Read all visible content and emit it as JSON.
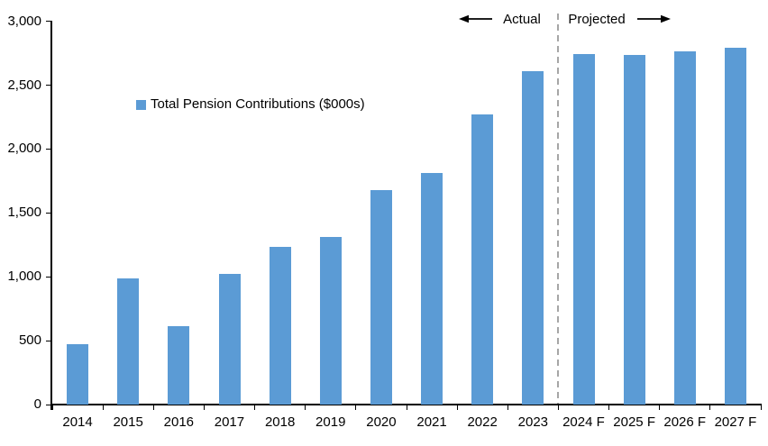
{
  "legend": {
    "label": "Total Pension Contributions ($000s)"
  },
  "annotations": {
    "actual": "Actual",
    "projected": "Projected"
  },
  "colors": {
    "bar": "#5b9bd5",
    "axis": "#000000",
    "text": "#000000",
    "separator": "#a6a6a6",
    "background": "#ffffff"
  },
  "chart_data": {
    "type": "bar",
    "title": "",
    "xlabel": "",
    "ylabel": "",
    "categories": [
      "2014",
      "2015",
      "2016",
      "2017",
      "2018",
      "2019",
      "2020",
      "2021",
      "2022",
      "2023",
      "2024 F",
      "2025 F",
      "2026 F",
      "2027 F"
    ],
    "series": [
      {
        "name": "Total Pension Contributions ($000s)",
        "values": [
          470,
          990,
          615,
          1020,
          1235,
          1315,
          1680,
          1810,
          2270,
          2610,
          2745,
          2735,
          2765,
          2790
        ]
      }
    ],
    "ylim": [
      0,
      3000
    ],
    "y_tick_step": 500,
    "y_tick_labels": [
      "0",
      "500",
      "1,000",
      "1,500",
      "2,000",
      "2,500",
      "3,000"
    ],
    "grid": false,
    "legend_position": "inside-upper-left",
    "bar_color": "#5b9bd5",
    "separator": {
      "after_category": "2023",
      "style": "dashed",
      "color": "#a6a6a6"
    },
    "annotations": [
      {
        "text": "Actual",
        "arrow": "left",
        "region": "left-of-separator"
      },
      {
        "text": "Projected",
        "arrow": "right",
        "region": "right-of-separator"
      }
    ]
  }
}
